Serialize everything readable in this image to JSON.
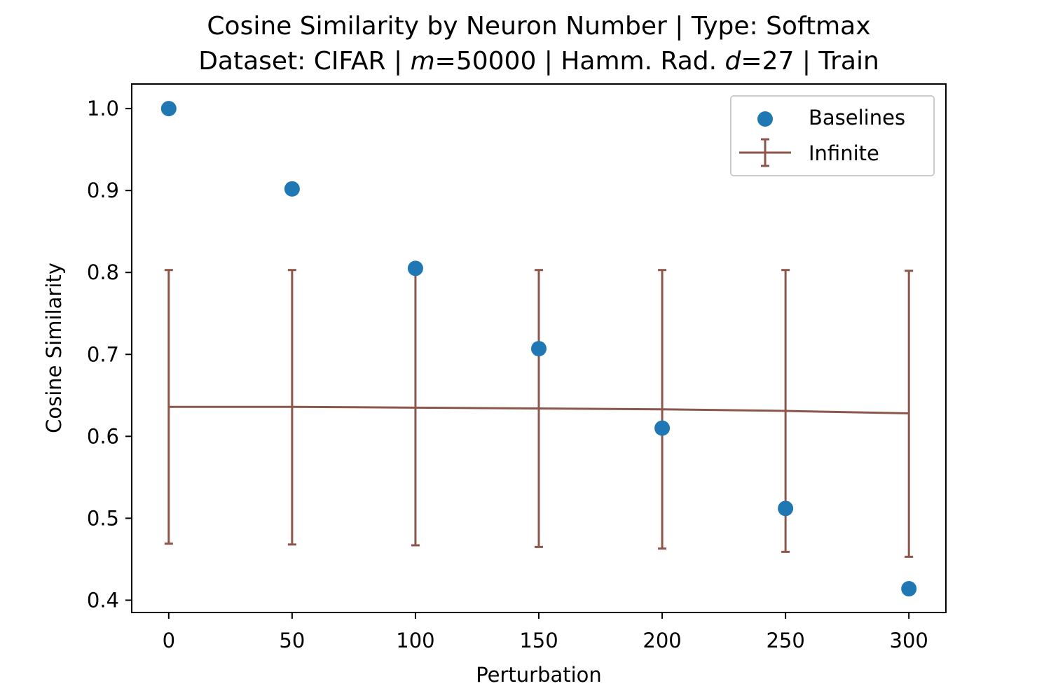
{
  "chart_data": {
    "type": "scatter",
    "title_line1": "Cosine Similarity by Neuron Number | Type: Softmax",
    "title_line2_parts": [
      "Dataset: CIFAR | ",
      "m",
      "=50000 | Hamm. Rad. ",
      "d",
      "=27 | Train"
    ],
    "xlabel": "Perturbation",
    "ylabel": "Cosine Similarity",
    "xlim": [
      -15,
      315
    ],
    "ylim": [
      0.385,
      1.03
    ],
    "xticks": [
      0,
      50,
      100,
      150,
      200,
      250,
      300
    ],
    "yticks": [
      0.4,
      0.5,
      0.6,
      0.7,
      0.8,
      0.9,
      1.0
    ],
    "ytick_labels": [
      "0.4",
      "0.5",
      "0.6",
      "0.7",
      "0.8",
      "0.9",
      "1.0"
    ],
    "legend_position": "top-right",
    "series": [
      {
        "name": "Baselines",
        "kind": "scatter",
        "color": "#1f77b4",
        "x": [
          0,
          50,
          100,
          150,
          200,
          250,
          300
        ],
        "y": [
          1.0,
          0.902,
          0.805,
          0.707,
          0.61,
          0.512,
          0.414
        ]
      },
      {
        "name": "Infinite",
        "kind": "errorbar",
        "color": "#8c564b",
        "x": [
          0,
          50,
          100,
          150,
          200,
          250,
          300
        ],
        "y": [
          0.636,
          0.636,
          0.635,
          0.634,
          0.633,
          0.631,
          0.628
        ],
        "y_low": [
          0.469,
          0.468,
          0.467,
          0.465,
          0.463,
          0.459,
          0.453
        ],
        "y_high": [
          0.803,
          0.803,
          0.803,
          0.803,
          0.803,
          0.803,
          0.802
        ]
      }
    ]
  }
}
